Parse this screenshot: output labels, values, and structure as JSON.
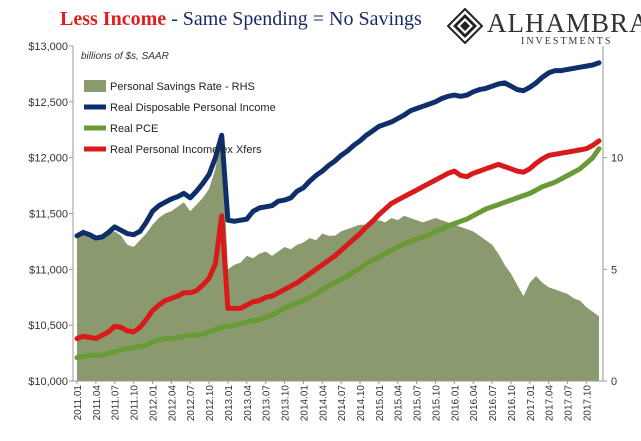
{
  "header": {
    "title_main": "Less Income",
    "title_sub": " - Same Spending = No Savings"
  },
  "logo": {
    "name": "ALHAMBRA",
    "sub": "INVESTMENTS",
    "icon": "alhambra-diamond-logo"
  },
  "chart_data": {
    "type": "line",
    "subtitle": "billions of $s, SAAR",
    "ylim": [
      10000,
      13000
    ],
    "y_ticks": [
      "$10,000",
      "$10,500",
      "$11,000",
      "$11,500",
      "$12,000",
      "$12,500",
      "$13,000"
    ],
    "y_tick_values": [
      10000,
      10500,
      11000,
      11500,
      12000,
      12500,
      13000
    ],
    "y2lim": [
      0,
      15
    ],
    "y2_ticks": [
      "0",
      "5",
      "10"
    ],
    "y2_tick_values": [
      0,
      5,
      10
    ],
    "x": [
      "2011.01",
      "2011.02",
      "2011.03",
      "2011.04",
      "2011.05",
      "2011.06",
      "2011.07",
      "2011.08",
      "2011.09",
      "2011.10",
      "2011.11",
      "2011.12",
      "2012.01",
      "2012.02",
      "2012.03",
      "2012.04",
      "2012.05",
      "2012.06",
      "2012.07",
      "2012.08",
      "2012.09",
      "2012.10",
      "2012.11",
      "2012.12",
      "2013.01",
      "2013.02",
      "2013.03",
      "2013.04",
      "2013.05",
      "2013.06",
      "2013.07",
      "2013.08",
      "2013.09",
      "2013.10",
      "2013.11",
      "2013.12",
      "2014.01",
      "2014.02",
      "2014.03",
      "2014.04",
      "2014.05",
      "2014.06",
      "2014.07",
      "2014.08",
      "2014.09",
      "2014.10",
      "2014.11",
      "2014.12",
      "2015.01",
      "2015.02",
      "2015.03",
      "2015.04",
      "2015.05",
      "2015.06",
      "2015.07",
      "2015.08",
      "2015.09",
      "2015.10",
      "2015.11",
      "2015.12",
      "2016.01",
      "2016.02",
      "2016.03",
      "2016.04",
      "2016.05",
      "2016.06",
      "2016.07",
      "2016.08",
      "2016.09",
      "2016.10",
      "2016.11",
      "2016.12",
      "2017.01",
      "2017.02",
      "2017.03",
      "2017.04",
      "2017.05",
      "2017.06",
      "2017.07",
      "2017.08",
      "2017.09",
      "2017.10",
      "2017.11",
      "2017.12"
    ],
    "x_tick_labels": [
      "2011.01",
      "2011.04",
      "2011.07",
      "2011.10",
      "2012.01",
      "2012.04",
      "2012.07",
      "2012.10",
      "2013.01",
      "2013.04",
      "2013.07",
      "2013.10",
      "2014.01",
      "2014.04",
      "2014.07",
      "2014.10",
      "2015.01",
      "2015.04",
      "2015.07",
      "2015.10",
      "2016.01",
      "2016.04",
      "2016.07",
      "2016.10",
      "2017.01",
      "2017.04",
      "2017.07",
      "2017.10"
    ],
    "legend_position": "top-left",
    "series": [
      {
        "name": "Personal Savings Rate - RHS",
        "type": "area",
        "axis": "right",
        "color": "#8a9a6e",
        "values": [
          6.6,
          6.8,
          6.5,
          6.3,
          6.4,
          6.6,
          6.7,
          6.5,
          6.1,
          6.0,
          6.3,
          6.6,
          7.0,
          7.3,
          7.5,
          7.6,
          7.8,
          8.0,
          7.6,
          7.9,
          8.2,
          8.6,
          9.5,
          11.2,
          5.0,
          5.2,
          5.3,
          5.6,
          5.5,
          5.7,
          5.8,
          5.6,
          5.8,
          6.0,
          5.9,
          6.1,
          6.2,
          6.4,
          6.3,
          6.6,
          6.5,
          6.5,
          6.7,
          6.8,
          6.9,
          7.0,
          7.0,
          7.2,
          7.2,
          7.1,
          7.3,
          7.2,
          7.4,
          7.3,
          7.2,
          7.1,
          7.2,
          7.3,
          7.2,
          7.1,
          7.0,
          6.9,
          6.8,
          6.7,
          6.5,
          6.3,
          6.1,
          5.7,
          5.2,
          4.8,
          4.3,
          3.8,
          4.4,
          4.7,
          4.4,
          4.2,
          4.1,
          4.0,
          3.9,
          3.7,
          3.6,
          3.3,
          3.1,
          2.9
        ]
      },
      {
        "name": "Real Disposable Personal Income",
        "type": "line",
        "axis": "left",
        "color": "#0f2f6b",
        "values": [
          11300,
          11330,
          11310,
          11280,
          11290,
          11330,
          11380,
          11350,
          11320,
          11310,
          11340,
          11420,
          11520,
          11570,
          11600,
          11630,
          11650,
          11680,
          11640,
          11700,
          11770,
          11850,
          12000,
          12200,
          11440,
          11430,
          11440,
          11450,
          11520,
          11550,
          11560,
          11570,
          11610,
          11620,
          11640,
          11700,
          11730,
          11790,
          11840,
          11880,
          11930,
          11970,
          12020,
          12060,
          12110,
          12150,
          12200,
          12240,
          12280,
          12300,
          12320,
          12350,
          12380,
          12420,
          12440,
          12460,
          12480,
          12500,
          12530,
          12550,
          12560,
          12550,
          12560,
          12590,
          12610,
          12620,
          12640,
          12660,
          12670,
          12640,
          12610,
          12600,
          12630,
          12670,
          12720,
          12760,
          12780,
          12780,
          12790,
          12800,
          12810,
          12820,
          12830,
          12850
        ]
      },
      {
        "name": "Real PCE",
        "type": "line",
        "axis": "left",
        "color": "#6a9a36",
        "values": [
          10210,
          10220,
          10230,
          10230,
          10230,
          10250,
          10260,
          10280,
          10290,
          10300,
          10310,
          10320,
          10350,
          10370,
          10380,
          10380,
          10390,
          10400,
          10410,
          10410,
          10420,
          10440,
          10460,
          10480,
          10490,
          10500,
          10510,
          10530,
          10540,
          10550,
          10570,
          10590,
          10620,
          10650,
          10680,
          10700,
          10720,
          10750,
          10780,
          10820,
          10850,
          10880,
          10910,
          10940,
          10980,
          11010,
          11050,
          11080,
          11110,
          11140,
          11170,
          11200,
          11230,
          11250,
          11270,
          11290,
          11310,
          11340,
          11360,
          11390,
          11410,
          11430,
          11450,
          11480,
          11510,
          11540,
          11560,
          11580,
          11600,
          11620,
          11640,
          11660,
          11680,
          11710,
          11740,
          11760,
          11780,
          11810,
          11840,
          11870,
          11900,
          11950,
          12000,
          12080
        ]
      },
      {
        "name": "Real Personal Income ex Xfers",
        "type": "line",
        "axis": "left",
        "color": "#d91a1a",
        "values": [
          10380,
          10400,
          10390,
          10380,
          10410,
          10440,
          10490,
          10480,
          10450,
          10440,
          10480,
          10550,
          10630,
          10680,
          10720,
          10740,
          10760,
          10790,
          10790,
          10810,
          10860,
          10920,
          11050,
          11480,
          10650,
          10650,
          10650,
          10680,
          10710,
          10720,
          10750,
          10760,
          10790,
          10820,
          10850,
          10880,
          10920,
          10960,
          11000,
          11040,
          11080,
          11120,
          11170,
          11220,
          11270,
          11320,
          11380,
          11430,
          11490,
          11540,
          11590,
          11620,
          11650,
          11680,
          11710,
          11740,
          11770,
          11800,
          11830,
          11860,
          11880,
          11840,
          11830,
          11860,
          11880,
          11900,
          11920,
          11940,
          11920,
          11900,
          11880,
          11870,
          11900,
          11950,
          11990,
          12020,
          12030,
          12040,
          12050,
          12060,
          12070,
          12080,
          12110,
          12150
        ]
      }
    ]
  }
}
